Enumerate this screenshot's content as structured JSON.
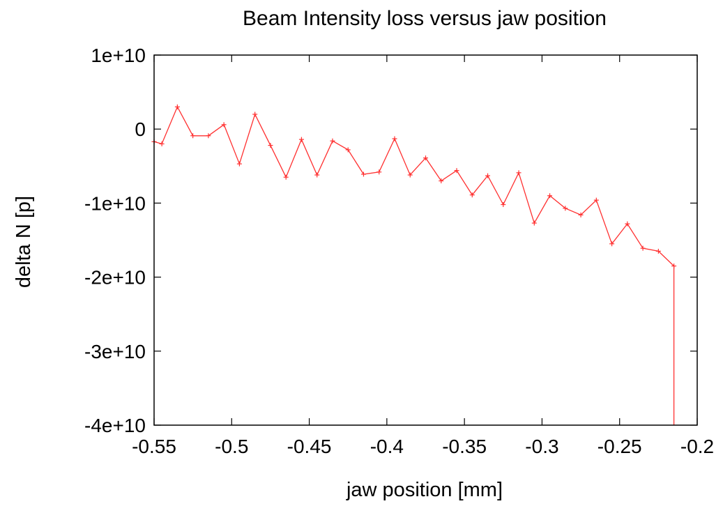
{
  "chart_data": {
    "type": "line",
    "title": "Beam Intensity loss versus jaw position",
    "xlabel": "jaw position [mm]",
    "ylabel": "delta N [p]",
    "xlim": [
      -0.55,
      -0.2
    ],
    "ylim": [
      -40000000000,
      10000000000
    ],
    "x_ticks": [
      -0.55,
      -0.5,
      -0.45,
      -0.4,
      -0.35,
      -0.3,
      -0.25,
      -0.2
    ],
    "x_tick_labels": [
      "-0.55",
      "-0.5",
      "-0.45",
      "-0.4",
      "-0.35",
      "-0.3",
      "-0.25",
      "-0.2"
    ],
    "y_ticks": [
      10000000000,
      0,
      -10000000000,
      -20000000000,
      -30000000000,
      -40000000000
    ],
    "y_tick_labels": [
      "1e+10",
      "0",
      "-1e+10",
      "-2e+10",
      "-3e+10",
      "-4e+10"
    ],
    "grid": false,
    "series": [
      {
        "color": "#ff3030",
        "marker": "plus",
        "x": [
          -0.55,
          -0.545,
          -0.535,
          -0.525,
          -0.515,
          -0.505,
          -0.495,
          -0.485,
          -0.475,
          -0.465,
          -0.455,
          -0.445,
          -0.435,
          -0.425,
          -0.415,
          -0.405,
          -0.395,
          -0.385,
          -0.375,
          -0.365,
          -0.355,
          -0.345,
          -0.335,
          -0.325,
          -0.315,
          -0.305,
          -0.295,
          -0.285,
          -0.275,
          -0.265,
          -0.255,
          -0.245,
          -0.235,
          -0.225,
          -0.215,
          -0.215
        ],
        "y": [
          -1700000000,
          -2000000000,
          3000000000,
          -900000000,
          -900000000,
          600000000,
          -4700000000,
          2000000000,
          -2200000000,
          -6500000000,
          -1400000000,
          -6200000000,
          -1600000000,
          -2800000000,
          -6100000000,
          -5800000000,
          -1300000000,
          -6200000000,
          -3900000000,
          -7000000000,
          -5600000000,
          -8900000000,
          -6300000000,
          -10200000000,
          -5900000000,
          -12700000000,
          -9000000000,
          -10700000000,
          -11600000000,
          -9600000000,
          -15500000000,
          -12800000000,
          -16100000000,
          -16500000000,
          -18500000000,
          -40000000000
        ]
      }
    ]
  }
}
